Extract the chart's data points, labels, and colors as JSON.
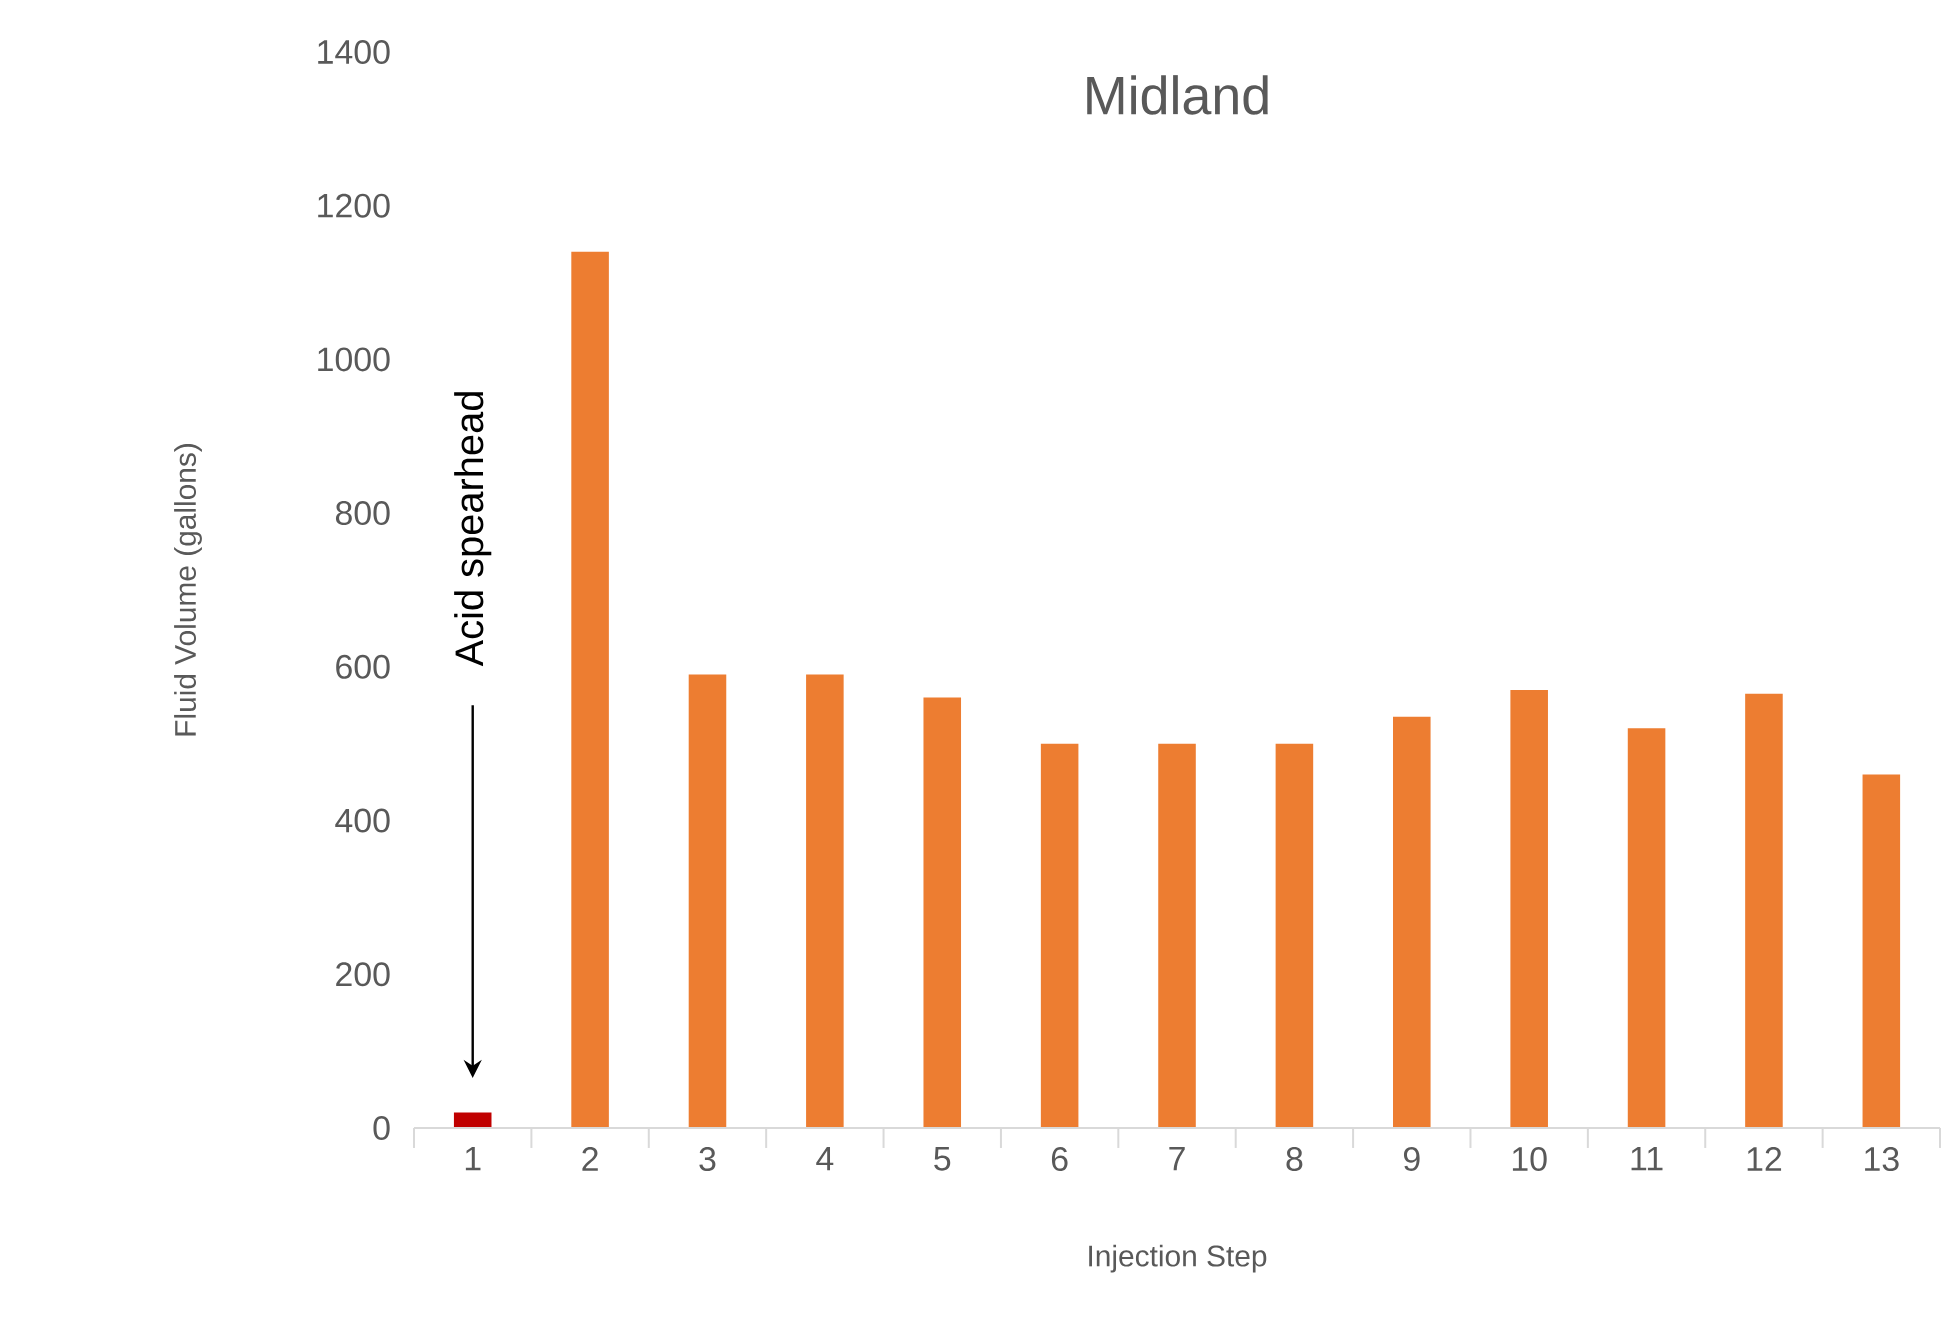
{
  "chart_data": {
    "type": "bar",
    "title": "Midland",
    "xlabel": "Injection Step",
    "ylabel": "Fluid Volume (gallons)",
    "categories": [
      "1",
      "2",
      "3",
      "4",
      "5",
      "6",
      "7",
      "8",
      "9",
      "10",
      "11",
      "12",
      "13"
    ],
    "values": [
      20,
      1140,
      590,
      590,
      560,
      500,
      500,
      500,
      535,
      570,
      520,
      565,
      460
    ],
    "colors": [
      "#c00000",
      "#ed7d31",
      "#ed7d31",
      "#ed7d31",
      "#ed7d31",
      "#ed7d31",
      "#ed7d31",
      "#ed7d31",
      "#ed7d31",
      "#ed7d31",
      "#ed7d31",
      "#ed7d31",
      "#ed7d31"
    ],
    "ylim": [
      0,
      1400
    ],
    "yticks": [
      0,
      200,
      400,
      600,
      800,
      1000,
      1200,
      1400
    ],
    "annotations": [
      "Acid spearhead"
    ]
  }
}
